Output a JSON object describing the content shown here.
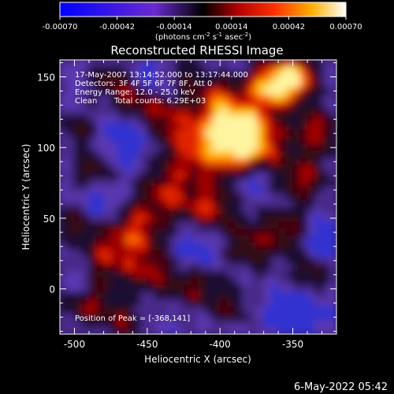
{
  "chart_data": {
    "type": "heatmap",
    "title": "Reconstructed RHESSI Image",
    "xlabel": "Heliocentric X (arcsec)",
    "ylabel": "Heliocentric Y (arcsec)",
    "xlim": [
      -510,
      -320
    ],
    "ylim": [
      -32,
      162
    ],
    "x_ticks": [
      -500,
      -450,
      -400,
      -350
    ],
    "y_ticks": [
      0,
      50,
      100,
      150
    ],
    "colorbar": {
      "ticks": [
        "-0.00070",
        "-0.00042",
        "-0.00014",
        "0.00014",
        "0.00042",
        "0.00070"
      ],
      "units_prefix": "(photons cm",
      "units_sup1": "-2",
      "units_mid1": " s",
      "units_sup2": "-1",
      "units_mid2": " asec",
      "units_sup3": "-2",
      "units_suffix": ")",
      "range": [
        -0.0007,
        0.0007
      ]
    },
    "annotations": {
      "time": "17-May-2007 13:14:52.000 to 13:17:44.000",
      "detectors": "Detectors: 3F 4F 5F 6F 7F 8F, Att 0",
      "energy": "Energy Range: 12.0 - 25.0 keV",
      "algorithm": "Clean",
      "counts": "Total counts: 6.29E+03",
      "peak": "Position of Peak = [-368,141]"
    },
    "peak": {
      "x": -368,
      "y": 141
    }
  },
  "footer": {
    "timestamp": "6-May-2022 05:42"
  }
}
